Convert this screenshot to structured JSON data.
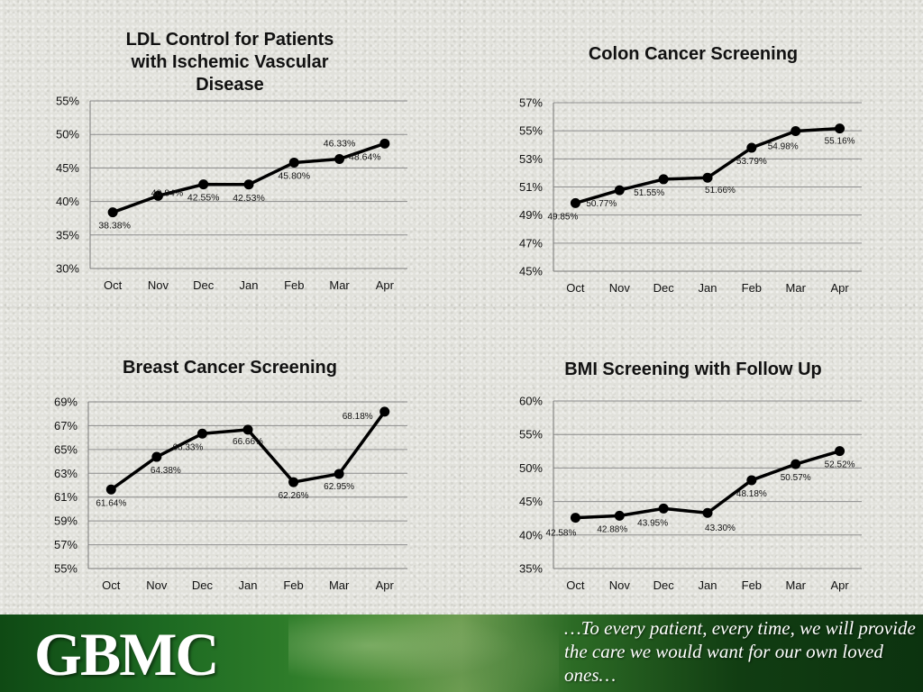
{
  "chart_data": [
    {
      "type": "line",
      "title": "LDL Control for Patients with Ischemic Vascular Disease",
      "categories": [
        "Oct",
        "Nov",
        "Dec",
        "Jan",
        "Feb",
        "Mar",
        "Apr"
      ],
      "values": [
        38.38,
        40.84,
        42.55,
        42.53,
        45.8,
        46.33,
        48.64
      ],
      "value_labels": [
        "38.38%",
        "40.84%",
        "42.55%",
        "42.53%",
        "45.80%",
        "46.33%",
        "48.64%"
      ],
      "ylim": [
        30,
        55
      ],
      "yticks": [
        30,
        35,
        40,
        45,
        50,
        55
      ],
      "ytick_labels": [
        "30%",
        "35%",
        "40%",
        "45%",
        "50%",
        "55%"
      ],
      "grid": true,
      "legend": "none"
    },
    {
      "type": "line",
      "title": "Colon Cancer Screening",
      "categories": [
        "Oct",
        "Nov",
        "Dec",
        "Jan",
        "Feb",
        "Mar",
        "Apr"
      ],
      "values": [
        49.85,
        50.77,
        51.55,
        51.66,
        53.79,
        54.98,
        55.16
      ],
      "value_labels": [
        "49.85%",
        "50.77%",
        "51.55%",
        "51.66%",
        "53.79%",
        "54.98%",
        "55.16%"
      ],
      "ylim": [
        45,
        57
      ],
      "yticks": [
        45,
        47,
        49,
        51,
        53,
        55,
        57
      ],
      "ytick_labels": [
        "45%",
        "47%",
        "49%",
        "51%",
        "53%",
        "55%",
        "57%"
      ],
      "grid": true,
      "legend": "none"
    },
    {
      "type": "line",
      "title": "Breast Cancer Screening",
      "categories": [
        "Oct",
        "Nov",
        "Dec",
        "Jan",
        "Feb",
        "Mar",
        "Apr"
      ],
      "values": [
        61.64,
        64.38,
        66.33,
        66.66,
        62.26,
        62.95,
        68.18
      ],
      "value_labels": [
        "61.64%",
        "64.38%",
        "66.33%",
        "66.66%",
        "62.26%",
        "62.95%",
        "68.18%"
      ],
      "ylim": [
        55,
        69
      ],
      "yticks": [
        55,
        57,
        59,
        61,
        63,
        65,
        67,
        69
      ],
      "ytick_labels": [
        "55%",
        "57%",
        "59%",
        "61%",
        "63%",
        "65%",
        "67%",
        "69%"
      ],
      "grid": true,
      "legend": "none"
    },
    {
      "type": "line",
      "title": "BMI Screening with Follow Up",
      "categories": [
        "Oct",
        "Nov",
        "Dec",
        "Jan",
        "Feb",
        "Mar",
        "Apr"
      ],
      "values": [
        42.58,
        42.88,
        43.95,
        43.3,
        48.18,
        50.57,
        52.52
      ],
      "value_labels": [
        "42.58%",
        "42.88%",
        "43.95%",
        "43.30%",
        "48.18%",
        "50.57%",
        "52.52%"
      ],
      "ylim": [
        35,
        60
      ],
      "yticks": [
        35,
        40,
        45,
        50,
        55,
        60
      ],
      "ytick_labels": [
        "35%",
        "40%",
        "45%",
        "50%",
        "55%",
        "60%"
      ],
      "grid": true,
      "legend": "none"
    }
  ],
  "footer": {
    "logo_text": "GBMC",
    "tagline": "…To every patient, every time, we will provide the care we would want for our own loved ones…"
  },
  "colors": {
    "line": "#000000",
    "grid": "#8c8c8c",
    "footer_green": "#1d6a22"
  }
}
